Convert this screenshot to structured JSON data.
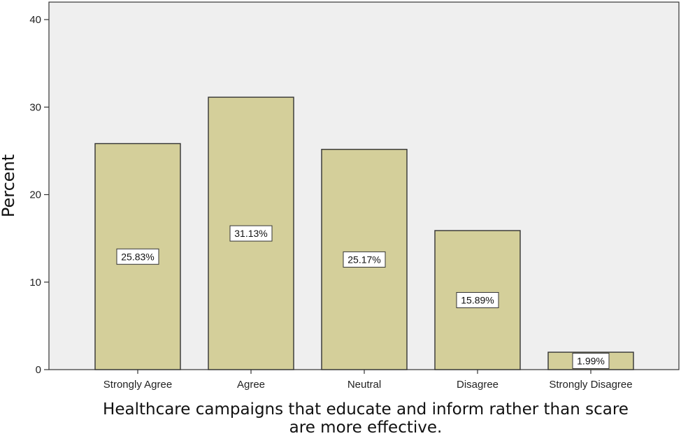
{
  "chart_data": {
    "type": "bar",
    "categories": [
      "Strongly Agree",
      "Agree",
      "Neutral",
      "Disagree",
      "Strongly Disagree"
    ],
    "values": [
      25.83,
      31.13,
      25.17,
      15.89,
      1.99
    ],
    "data_labels": [
      "25.83%",
      "31.13%",
      "25.17%",
      "15.89%",
      "1.99%"
    ],
    "title": "",
    "xlabel_lines": [
      "Healthcare campaigns that educate and inform rather than scare",
      "are more effective."
    ],
    "ylabel": "Percent",
    "ylim": [
      0,
      42
    ],
    "yticks": [
      0,
      10,
      20,
      30,
      40
    ],
    "grid": false,
    "colors": {
      "bar_fill": "#d4cf9a",
      "bar_stroke": "#333333",
      "plot_background": "#efefef",
      "label_box": "#ffffff"
    }
  }
}
